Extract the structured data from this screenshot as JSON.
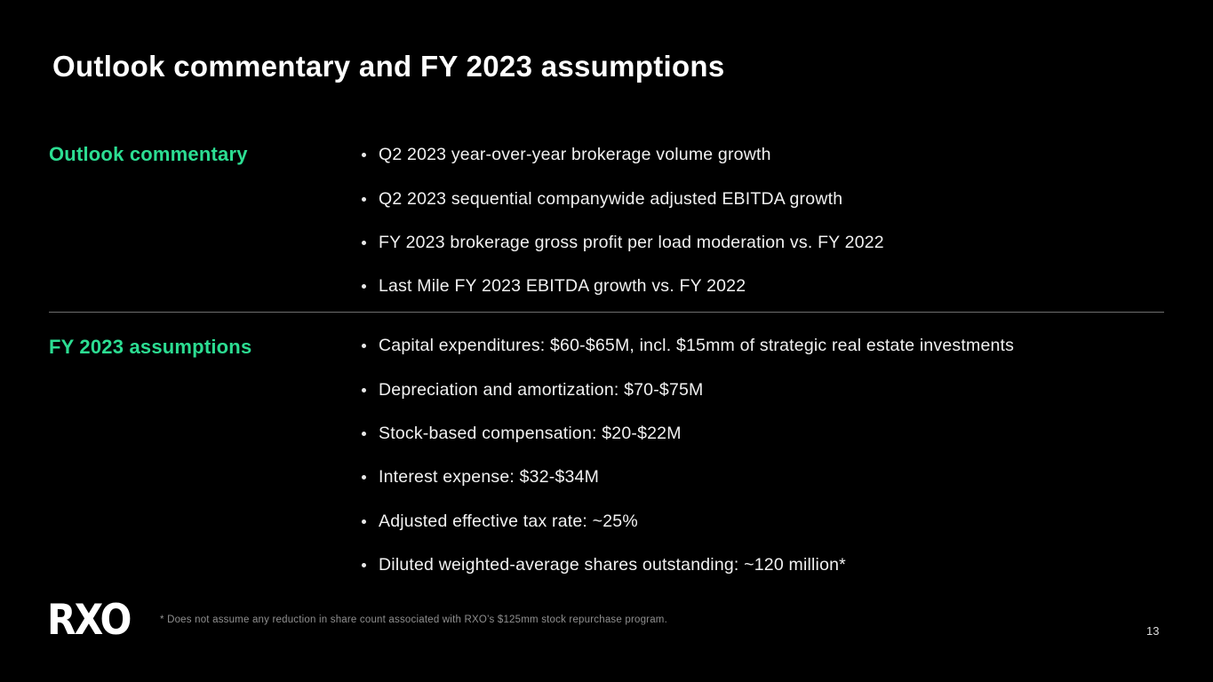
{
  "slide": {
    "title": "Outlook commentary and FY 2023 assumptions",
    "page_number": "13",
    "footnote": "* Does not assume any reduction in share count associated with RXO’s $125mm stock repurchase program.",
    "logo_text": "RXO"
  },
  "colors": {
    "background": "#000000",
    "accent_green": "#2cdd92",
    "body_text": "#f1f1f1",
    "muted_text": "#8f8f8f",
    "divider": "#6d6d6d"
  },
  "sections": [
    {
      "label": "Outlook commentary",
      "items": [
        "Q2 2023 year-over-year brokerage volume growth",
        "Q2 2023 sequential companywide adjusted EBITDA growth",
        "FY 2023 brokerage gross profit per load moderation vs. FY 2022",
        "Last Mile FY 2023 EBITDA growth vs. FY 2022"
      ]
    },
    {
      "label": "FY 2023 assumptions",
      "items": [
        "Capital expenditures: $60-$65M, incl. $15mm of strategic real estate investments",
        "Depreciation and amortization: $70-$75M",
        "Stock-based compensation: $20-$22M",
        "Interest expense: $32-$34M",
        "Adjusted effective tax rate: ~25%",
        "Diluted weighted-average shares outstanding: ~120 million*"
      ]
    }
  ]
}
